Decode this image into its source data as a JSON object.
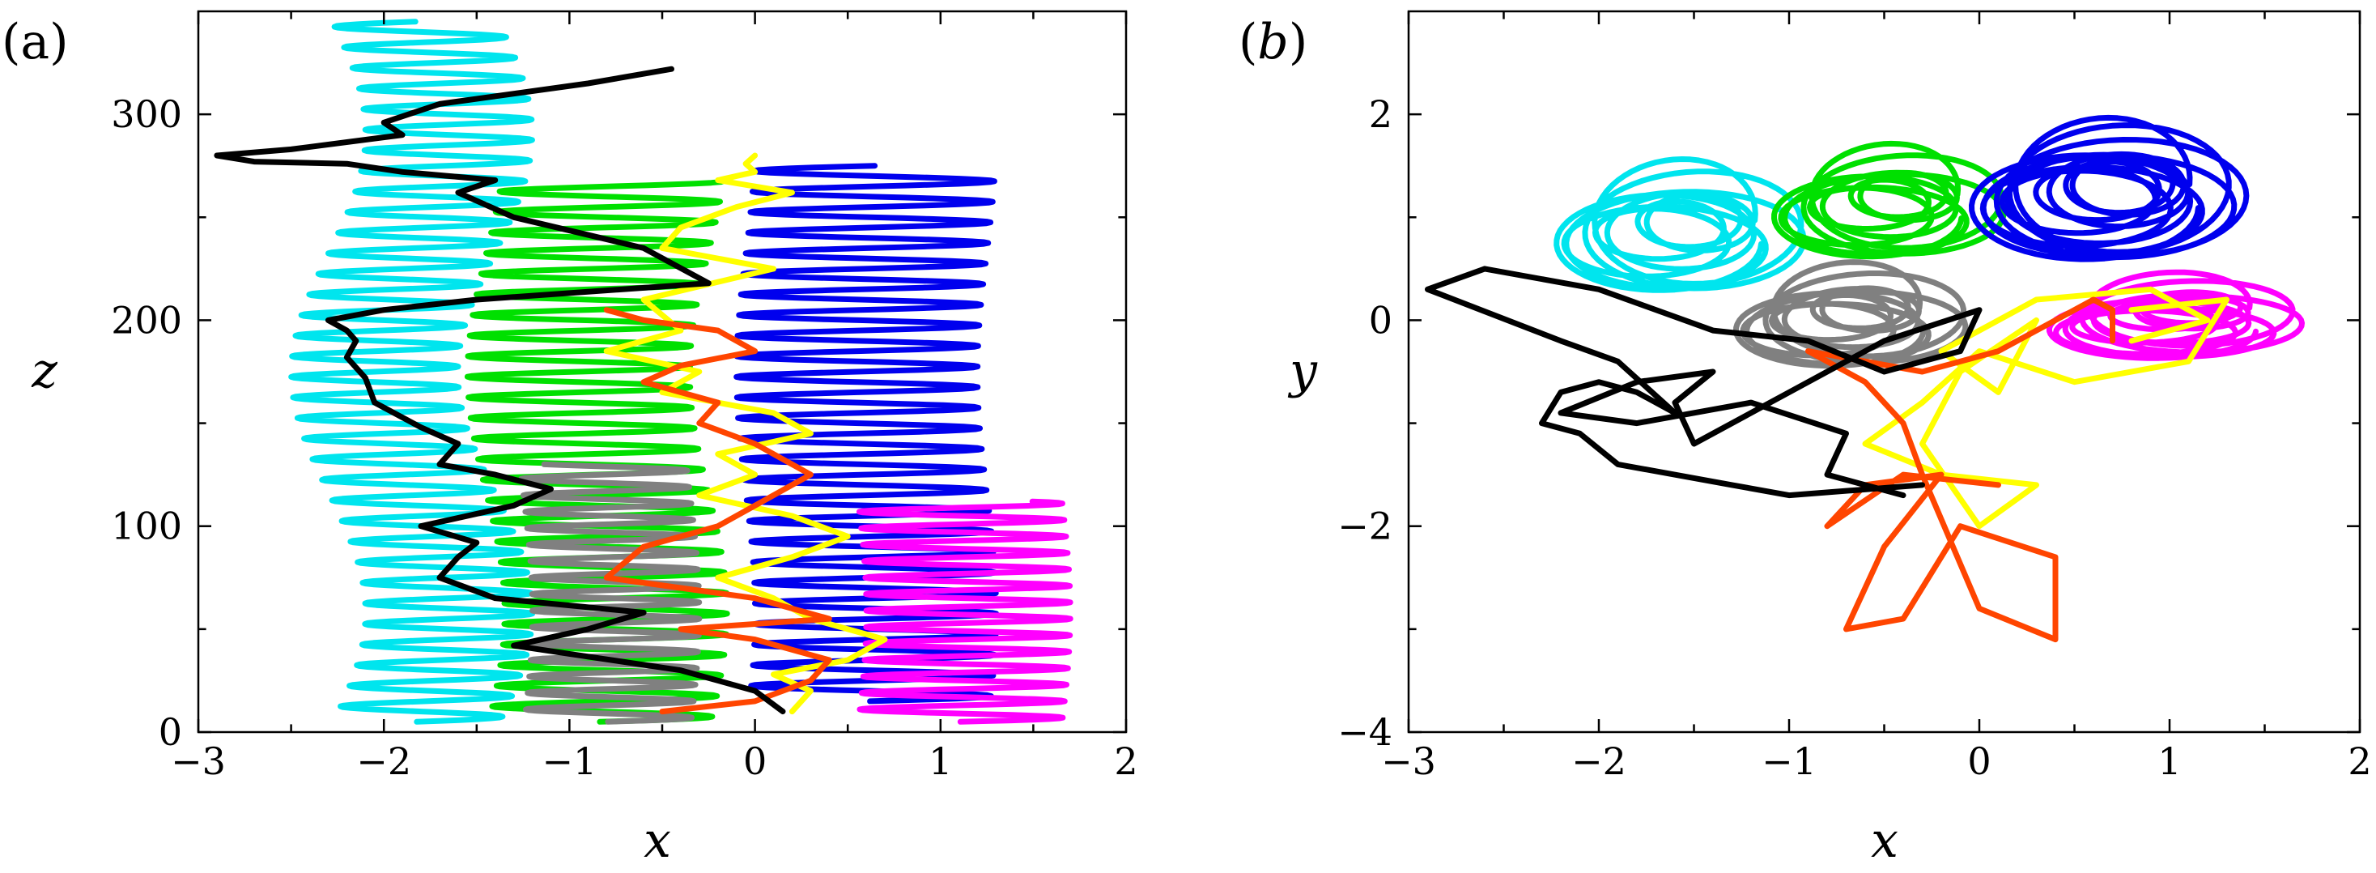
{
  "chart_data": [
    {
      "panel": "(a)",
      "type": "line",
      "xlabel": "x",
      "ylabel": "z",
      "xlim": [
        -3,
        2
      ],
      "ylim": [
        0,
        350
      ],
      "xticks": [
        -3,
        -2,
        -1,
        0,
        1,
        2
      ],
      "yticks": [
        0,
        100,
        200,
        300
      ],
      "tick_labels_x": [
        "−3",
        "−2",
        "−1",
        "0",
        "1",
        "2"
      ],
      "tick_labels_y": [
        "0",
        "100",
        "200",
        "300"
      ],
      "grid": false,
      "series": [
        {
          "color": "#00e5ee",
          "kind": "helix",
          "center": -1.85,
          "amp": 0.45,
          "z_start": 5,
          "z_end": 345,
          "period": 10,
          "wobble": 0.2
        },
        {
          "color": "#00e000",
          "kind": "helix",
          "center": -0.85,
          "amp": 0.6,
          "z_start": 5,
          "z_end": 268,
          "period": 10,
          "wobble": 0.1
        },
        {
          "color": "#0000ee",
          "kind": "helix",
          "center": 0.6,
          "amp": 0.65,
          "z_start": 15,
          "z_end": 275,
          "period": 10,
          "wobble": 0.05
        },
        {
          "color": "#ff00ff",
          "kind": "helix",
          "center": 1.1,
          "amp": 0.55,
          "z_start": 5,
          "z_end": 112,
          "period": 8,
          "wobble": 0.05
        },
        {
          "color": "#808080",
          "kind": "helix",
          "center": -0.8,
          "amp": 0.45,
          "z_start": 5,
          "z_end": 130,
          "period": 8,
          "wobble": 0.05
        },
        {
          "color": "#ffff00",
          "kind": "path",
          "x": [
            0.2,
            0.3,
            0.1,
            0.5,
            0.7,
            0.3,
            0.1,
            -0.2,
            0.2,
            0.5,
            0.2,
            -0.3,
            0.0,
            -0.2,
            0.3,
            0.1,
            -0.5,
            -0.3,
            -0.8,
            -0.4,
            -0.6,
            0.1,
            -0.5,
            -0.4,
            -0.1,
            0.2,
            -0.2,
            0.0,
            -0.05,
            0.0
          ],
          "y": [
            10,
            20,
            28,
            35,
            45,
            55,
            65,
            75,
            85,
            95,
            105,
            115,
            125,
            135,
            145,
            155,
            165,
            175,
            185,
            195,
            210,
            225,
            235,
            245,
            255,
            262,
            268,
            272,
            276,
            280
          ]
        },
        {
          "color": "#ff4500",
          "kind": "path",
          "x": [
            -0.5,
            0.0,
            0.3,
            0.4,
            0.0,
            -0.4,
            0.4,
            0.0,
            -0.8,
            -0.6,
            -0.2,
            0.0,
            0.3,
            0.0,
            -0.3,
            -0.2,
            -0.6,
            -0.4,
            0.0,
            -0.2,
            -0.6,
            -0.8
          ],
          "y": [
            10,
            15,
            25,
            35,
            45,
            50,
            55,
            65,
            75,
            90,
            100,
            110,
            125,
            140,
            150,
            160,
            170,
            178,
            185,
            195,
            200,
            205
          ]
        },
        {
          "color": "#000000",
          "kind": "path",
          "x": [
            0.15,
            0.0,
            -0.4,
            -1.0,
            -1.3,
            -0.9,
            -0.6,
            -1.4,
            -1.7,
            -1.6,
            -1.5,
            -1.8,
            -1.3,
            -1.1,
            -1.4,
            -1.7,
            -1.6,
            -1.8,
            -2.05,
            -2.1,
            -2.2,
            -2.15,
            -2.2,
            -2.3,
            -2.0,
            -1.5,
            -0.25,
            -0.6,
            -1.3,
            -1.6,
            -1.4,
            -1.9,
            -2.2,
            -2.7,
            -2.9,
            -2.5,
            -1.9,
            -2.0,
            -1.7,
            -1.3,
            -0.9,
            -0.45
          ],
          "y": [
            10,
            20,
            30,
            38,
            42,
            50,
            58,
            65,
            75,
            85,
            92,
            100,
            110,
            118,
            125,
            130,
            140,
            148,
            160,
            172,
            182,
            190,
            195,
            200,
            205,
            210,
            218,
            235,
            250,
            262,
            268,
            272,
            276,
            277,
            280,
            283,
            290,
            296,
            305,
            310,
            315,
            322
          ]
        }
      ]
    },
    {
      "panel": "b",
      "type": "line",
      "xlabel": "x",
      "ylabel": "y",
      "xlim": [
        -3,
        2
      ],
      "ylim": [
        -4,
        3
      ],
      "xticks": [
        -3,
        -2,
        -1,
        0,
        1,
        2
      ],
      "yticks": [
        -4,
        -2,
        0,
        2
      ],
      "tick_labels_x": [
        "−3",
        "−2",
        "−1",
        "0",
        "1",
        "2"
      ],
      "tick_labels_y": [
        "−4",
        "−2",
        "0",
        "2"
      ],
      "grid": false,
      "series": [
        {
          "color": "#00e5ee",
          "kind": "orbit",
          "cx": -1.6,
          "cy": 0.85,
          "rx": 0.6,
          "ry": 0.6,
          "loops": 9
        },
        {
          "color": "#00e000",
          "kind": "orbit",
          "cx": -0.5,
          "cy": 1.1,
          "rx": 0.55,
          "ry": 0.5,
          "loops": 9
        },
        {
          "color": "#0000ee",
          "kind": "orbit",
          "cx": 0.65,
          "cy": 1.2,
          "rx": 0.65,
          "ry": 0.65,
          "loops": 12
        },
        {
          "color": "#ff00ff",
          "kind": "orbit",
          "cx": 1.0,
          "cy": 0.0,
          "rx": 0.6,
          "ry": 0.35,
          "loops": 10
        },
        {
          "color": "#808080",
          "kind": "orbit",
          "cx": -0.7,
          "cy": 0.0,
          "rx": 0.55,
          "ry": 0.45,
          "loops": 9
        },
        {
          "color": "#ffff00",
          "kind": "path",
          "x": [
            0.8,
            1.3,
            1.1,
            0.5,
            0.0,
            -0.3,
            -0.6,
            -0.2,
            0.3,
            0.0,
            -0.3,
            -0.1,
            0.3,
            0.1,
            -0.2,
            0.3,
            0.9,
            1.2,
            0.8
          ],
          "y": [
            0.1,
            0.2,
            -0.4,
            -0.6,
            -0.3,
            -0.8,
            -1.2,
            -1.5,
            -1.6,
            -2.0,
            -1.2,
            -0.5,
            0.0,
            -0.7,
            -0.3,
            0.2,
            0.3,
            0.0,
            -0.2
          ]
        },
        {
          "color": "#ff4500",
          "kind": "path",
          "x": [
            0.1,
            -0.4,
            -0.8,
            -0.6,
            -0.2,
            -0.5,
            -0.7,
            -0.4,
            -0.1,
            0.4,
            0.4,
            0.0,
            -0.3,
            -0.4,
            -0.6,
            -0.9,
            -0.3,
            0.1,
            0.4,
            0.6,
            0.7,
            0.7
          ],
          "y": [
            -1.6,
            -1.5,
            -2.0,
            -1.6,
            -1.5,
            -2.2,
            -3.0,
            -2.9,
            -2.0,
            -2.3,
            -3.1,
            -2.8,
            -1.5,
            -1.0,
            -0.6,
            -0.3,
            -0.5,
            -0.3,
            0.0,
            0.2,
            0.1,
            -0.2
          ]
        },
        {
          "color": "#000000",
          "kind": "path",
          "x": [
            -0.3,
            -1.0,
            -1.3,
            -1.9,
            -2.1,
            -2.3,
            -2.2,
            -2.0,
            -1.8,
            -1.6,
            -1.9,
            -2.2,
            -2.9,
            -2.6,
            -2.0,
            -1.4,
            -0.9,
            -0.5,
            -0.1,
            0.0,
            -0.5,
            -1.0,
            -1.5,
            -1.6,
            -1.4,
            -1.8,
            -2.2,
            -1.8,
            -1.2,
            -0.7,
            -0.8,
            -0.4
          ],
          "y": [
            -1.6,
            -1.7,
            -1.6,
            -1.4,
            -1.1,
            -1.0,
            -0.7,
            -0.6,
            -0.7,
            -0.9,
            -0.4,
            -0.2,
            0.3,
            0.5,
            0.3,
            -0.1,
            -0.2,
            -0.5,
            -0.3,
            0.1,
            -0.2,
            -0.7,
            -1.2,
            -0.8,
            -0.5,
            -0.6,
            -0.9,
            -1.0,
            -0.8,
            -1.1,
            -1.5,
            -1.7
          ]
        }
      ]
    }
  ]
}
